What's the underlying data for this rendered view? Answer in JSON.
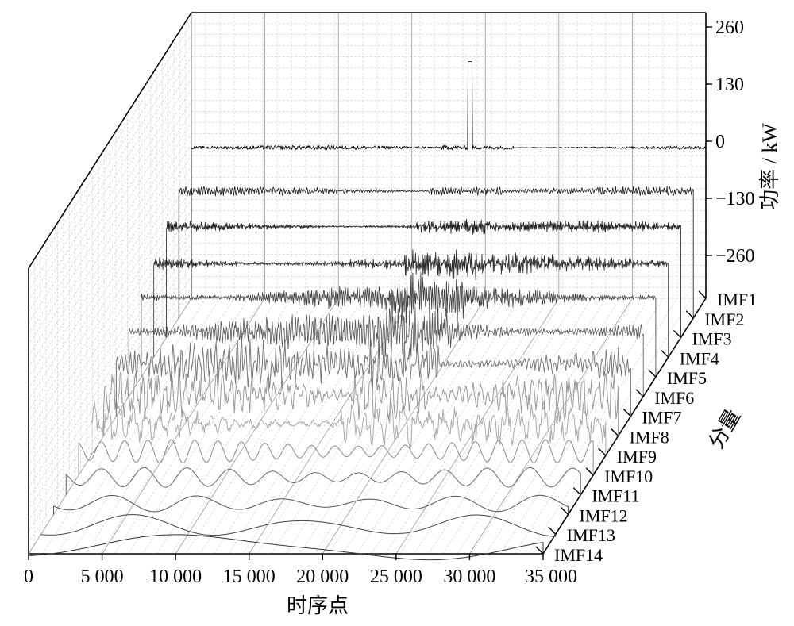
{
  "chart_data": {
    "type": "line",
    "subtype": "3d-waterfall",
    "title": "",
    "xlabel": "时序点",
    "ylabel": "分量",
    "zlabel": "功率 / kW",
    "x_ticks": [
      0,
      5000,
      10000,
      15000,
      20000,
      25000,
      30000,
      35000
    ],
    "x_tick_labels": [
      "0",
      "5 000",
      "10 000",
      "15 000",
      "20 000",
      "25 000",
      "30 000",
      "35 000"
    ],
    "xlim": [
      0,
      35000
    ],
    "z_ticks": [
      260,
      130,
      0,
      -130,
      -260
    ],
    "z_tick_labels": [
      "260",
      "130",
      "0",
      "−130",
      "−260"
    ],
    "zlim": [
      -260,
      260
    ],
    "categories": [
      "IMF1",
      "IMF2",
      "IMF3",
      "IMF4",
      "IMF5",
      "IMF6",
      "IMF7",
      "IMF8",
      "IMF9",
      "IMF10",
      "IMF11",
      "IMF12",
      "IMF13",
      "IMF14"
    ],
    "series": [
      {
        "name": "IMF1",
        "approx_amplitude_kW": 10,
        "oscillation": "very high frequency",
        "color": "#000000"
      },
      {
        "name": "IMF2",
        "approx_amplitude_kW": 12,
        "oscillation": "very high frequency",
        "color": "#111111"
      },
      {
        "name": "IMF3",
        "approx_amplitude_kW": 15,
        "oscillation": "high frequency",
        "color": "#1e1e1e"
      },
      {
        "name": "IMF4",
        "approx_amplitude_kW": 25,
        "oscillation": "high frequency",
        "color": "#2c2c2c"
      },
      {
        "name": "IMF5",
        "approx_amplitude_kW": 35,
        "oscillation": "high frequency",
        "color": "#3c3c3c"
      },
      {
        "name": "IMF6",
        "approx_amplitude_kW": 45,
        "oscillation": "medium-high frequency",
        "color": "#555555"
      },
      {
        "name": "IMF7",
        "approx_amplitude_kW": 60,
        "oscillation": "medium frequency",
        "color": "#777777"
      },
      {
        "name": "IMF8",
        "approx_amplitude_kW": 70,
        "oscillation": "medium frequency",
        "color": "#999999"
      },
      {
        "name": "IMF9",
        "approx_amplitude_kW": 55,
        "oscillation": "medium frequency",
        "color": "#aaaaaa"
      },
      {
        "name": "IMF10",
        "approx_amplitude_kW": 35,
        "oscillation": "low-medium frequency",
        "color": "#8a8a8a"
      },
      {
        "name": "IMF11",
        "approx_amplitude_kW": 30,
        "oscillation": "low frequency",
        "color": "#6a6a6a"
      },
      {
        "name": "IMF12",
        "approx_amplitude_kW": 25,
        "oscillation": "low frequency",
        "color": "#555555"
      },
      {
        "name": "IMF13",
        "approx_amplitude_kW": 35,
        "oscillation": "very low frequency",
        "color": "#444444"
      },
      {
        "name": "IMF14",
        "approx_amplitude_kW": 45,
        "oscillation": "trend",
        "color": "#333333"
      }
    ],
    "grid": true,
    "legend": "none"
  }
}
